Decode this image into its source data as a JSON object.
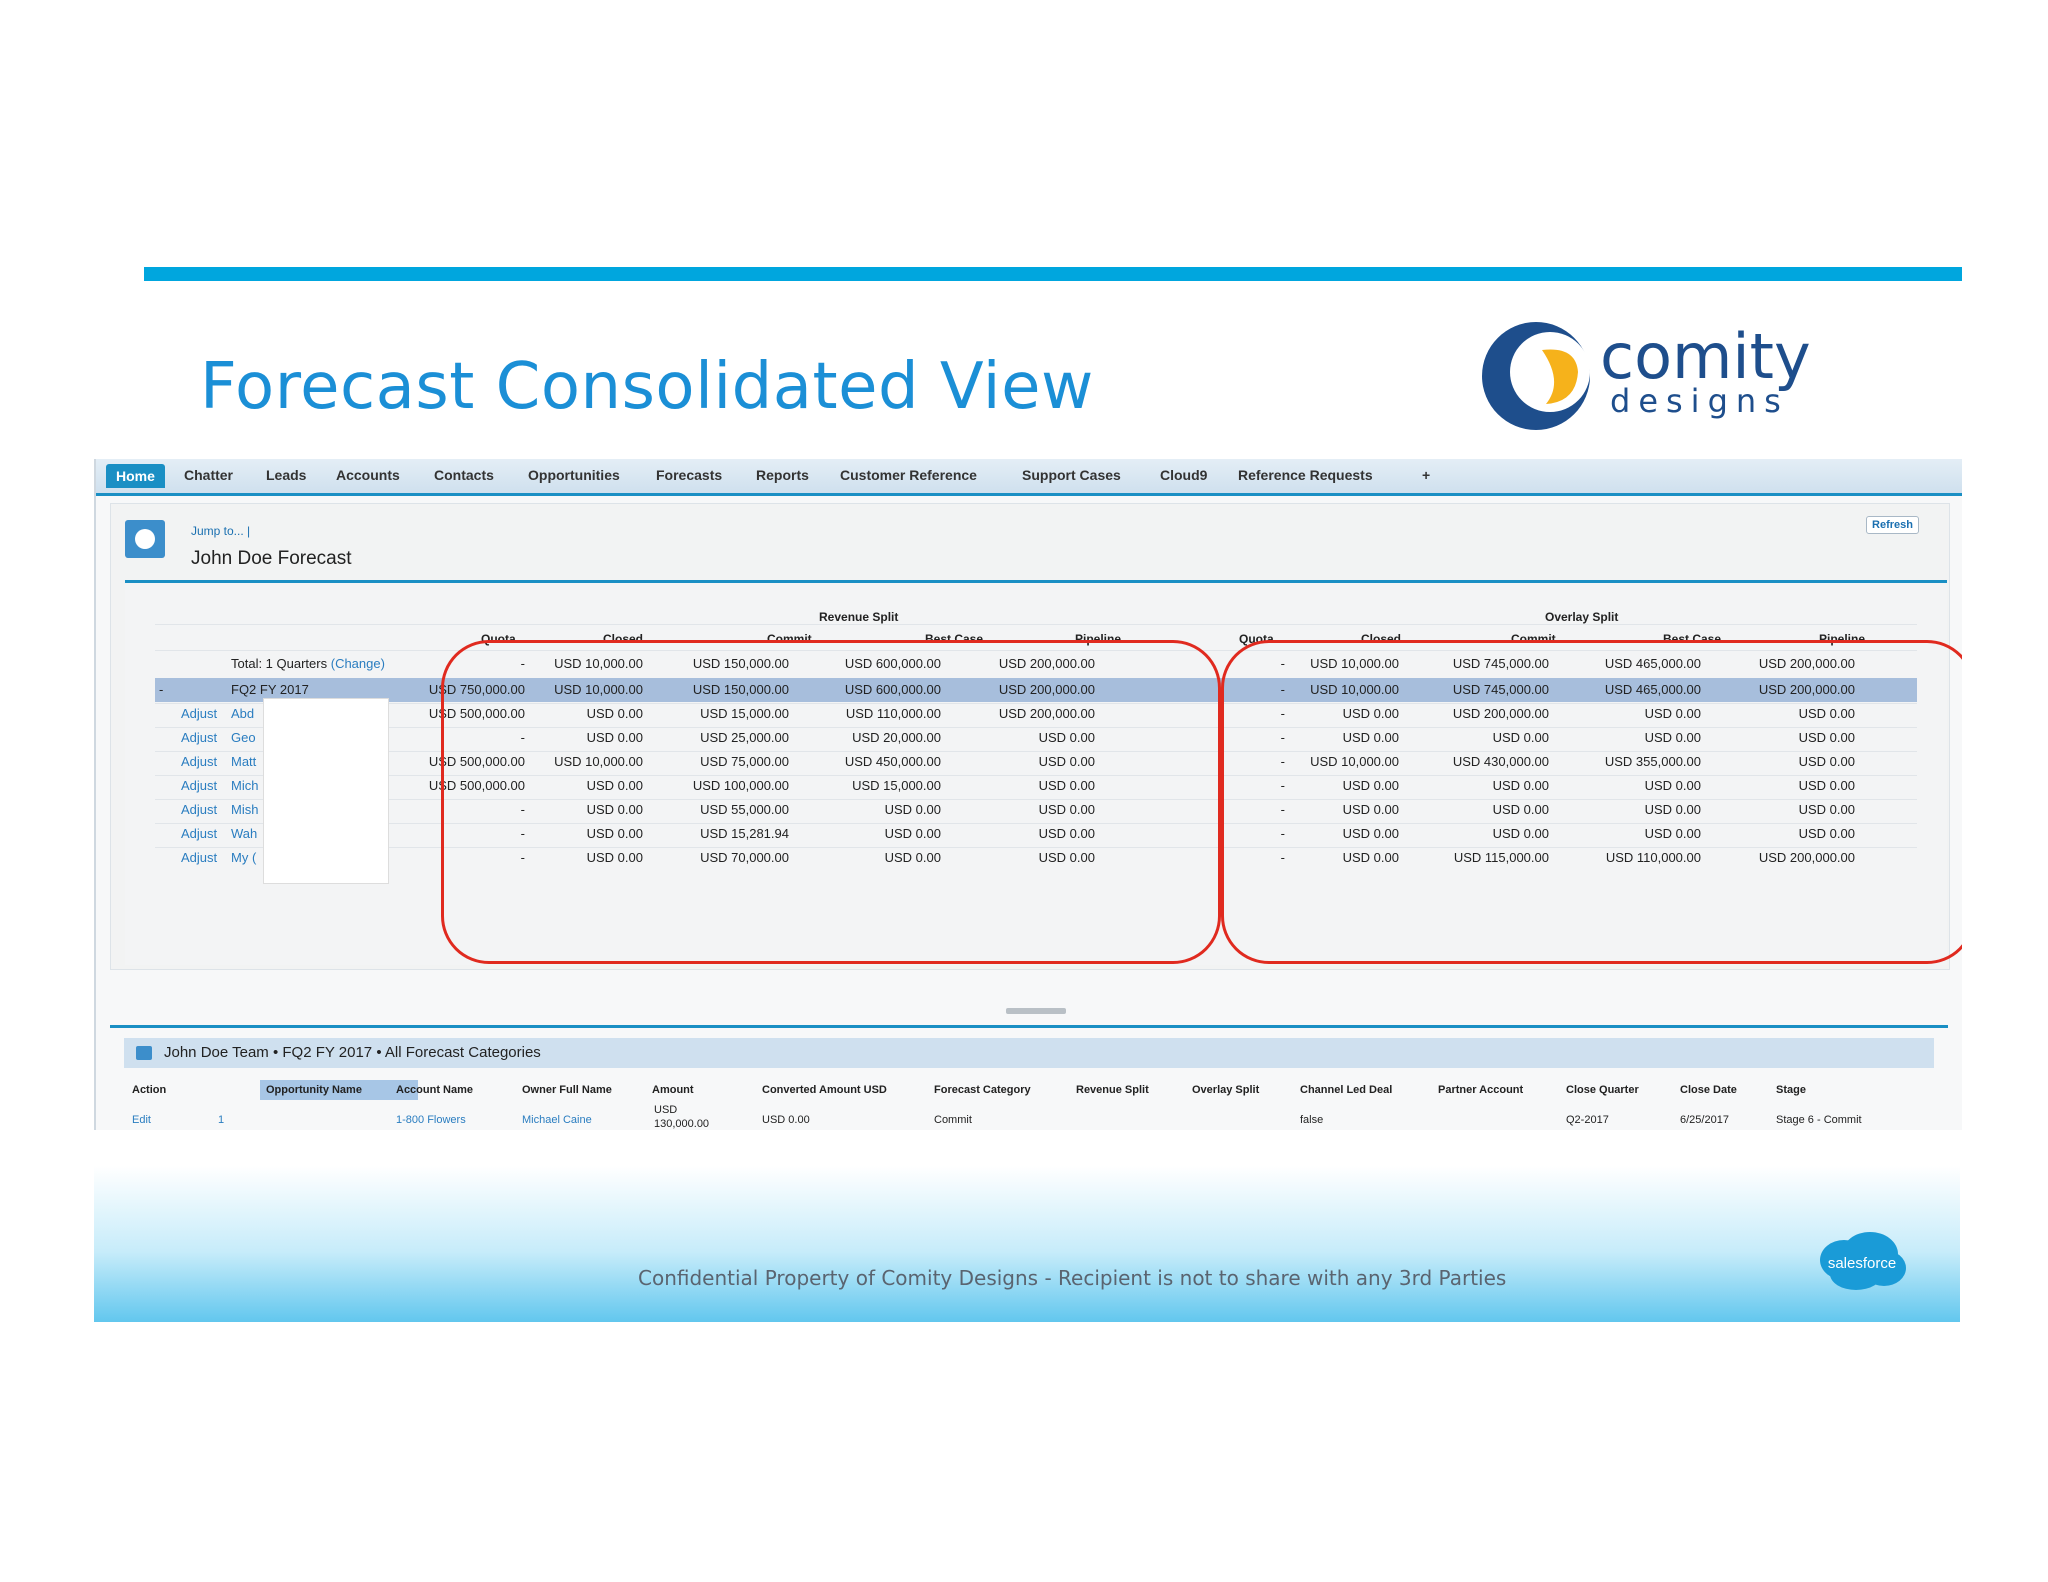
{
  "slide": {
    "title": "Forecast Consolidated View",
    "logo_line1": "comity",
    "logo_line2": "designs",
    "footer": "Confidential Property of Comity Designs - Recipient is not to share with any 3rd Parties",
    "salesforce_logo": "salesforce"
  },
  "tabs": [
    "Home",
    "Chatter",
    "Leads",
    "Accounts",
    "Contacts",
    "Opportunities",
    "Forecasts",
    "Reports",
    "Customer Reference",
    "Support Cases",
    "Cloud9",
    "Reference Requests",
    "+"
  ],
  "header": {
    "jump": "Jump to...  |",
    "forecast_name": "John Doe Forecast",
    "refresh": "Refresh"
  },
  "grid": {
    "revenue_split_label": "Revenue Split",
    "overlay_split_label": "Overlay Split",
    "columns": [
      "Quota",
      "Closed",
      "Commit",
      "Best Case",
      "Pipeline"
    ],
    "total_label": "Total: 1 Quarters",
    "change_link": "(Change)",
    "period_label": "FQ2 FY 2017",
    "collapse": "-",
    "rows": [
      {
        "label": "",
        "revenue": [
          "-",
          "USD 10,000.00",
          "USD 150,000.00",
          "USD 600,000.00",
          "USD 200,000.00"
        ],
        "overlay": [
          "-",
          "USD 10,000.00",
          "USD 745,000.00",
          "USD 465,000.00",
          "USD 200,000.00"
        ]
      },
      {
        "label": "",
        "revenue": [
          "USD 750,000.00",
          "USD 10,000.00",
          "USD 150,000.00",
          "USD 600,000.00",
          "USD 200,000.00"
        ],
        "overlay": [
          "-",
          "USD 10,000.00",
          "USD 745,000.00",
          "USD 465,000.00",
          "USD 200,000.00"
        ]
      },
      {
        "label": "Abd",
        "revenue": [
          "USD 500,000.00",
          "USD 0.00",
          "USD 15,000.00",
          "USD 110,000.00",
          "USD 200,000.00"
        ],
        "overlay": [
          "-",
          "USD 0.00",
          "USD 200,000.00",
          "USD 0.00",
          "USD 0.00"
        ]
      },
      {
        "label": "Geo",
        "revenue": [
          "-",
          "USD 0.00",
          "USD 25,000.00",
          "USD 20,000.00",
          "USD 0.00"
        ],
        "overlay": [
          "-",
          "USD 0.00",
          "USD 0.00",
          "USD 0.00",
          "USD 0.00"
        ]
      },
      {
        "label": "Matt",
        "revenue": [
          "USD 500,000.00",
          "USD 10,000.00",
          "USD 75,000.00",
          "USD 450,000.00",
          "USD 0.00"
        ],
        "overlay": [
          "-",
          "USD 10,000.00",
          "USD 430,000.00",
          "USD 355,000.00",
          "USD 0.00"
        ]
      },
      {
        "label": "Mich",
        "revenue": [
          "USD 500,000.00",
          "USD 0.00",
          "USD 100,000.00",
          "USD 15,000.00",
          "USD 0.00"
        ],
        "overlay": [
          "-",
          "USD 0.00",
          "USD 0.00",
          "USD 0.00",
          "USD 0.00"
        ]
      },
      {
        "label": "Mish",
        "revenue": [
          "-",
          "USD 0.00",
          "USD 55,000.00",
          "USD 0.00",
          "USD 0.00"
        ],
        "overlay": [
          "-",
          "USD 0.00",
          "USD 0.00",
          "USD 0.00",
          "USD 0.00"
        ]
      },
      {
        "label": "Wah",
        "revenue": [
          "-",
          "USD 0.00",
          "USD 15,281.94",
          "USD 0.00",
          "USD 0.00"
        ],
        "overlay": [
          "-",
          "USD 0.00",
          "USD 0.00",
          "USD 0.00",
          "USD 0.00"
        ]
      },
      {
        "label": "My (",
        "revenue": [
          "-",
          "USD 0.00",
          "USD 70,000.00",
          "USD 0.00",
          "USD 0.00"
        ],
        "overlay": [
          "-",
          "USD 0.00",
          "USD 115,000.00",
          "USD 110,000.00",
          "USD 200,000.00"
        ]
      }
    ],
    "adjust_label": "Adjust"
  },
  "team": {
    "title": "John Doe Team  •  FQ2 FY 2017  •  All Forecast Categories",
    "columns": [
      "Action",
      "Opportunity Name",
      "Account Name",
      "Owner Full Name",
      "Amount",
      "Converted Amount USD",
      "Forecast Category",
      "Revenue Split",
      "Overlay Split",
      "Channel Led Deal",
      "Partner Account",
      "Close Quarter",
      "Close Date",
      "Stage"
    ],
    "row": {
      "action": "Edit",
      "opportunity": "1",
      "account": "1-800 Flowers",
      "owner": "Michael Caine",
      "amount_line1": "USD",
      "amount_line2": "130,000.00",
      "converted": "USD 0.00",
      "category": "Commit",
      "channel": "false",
      "quarter": "Q2-2017",
      "close_date": "6/25/2017",
      "stage": "Stage 6 - Commit"
    }
  }
}
